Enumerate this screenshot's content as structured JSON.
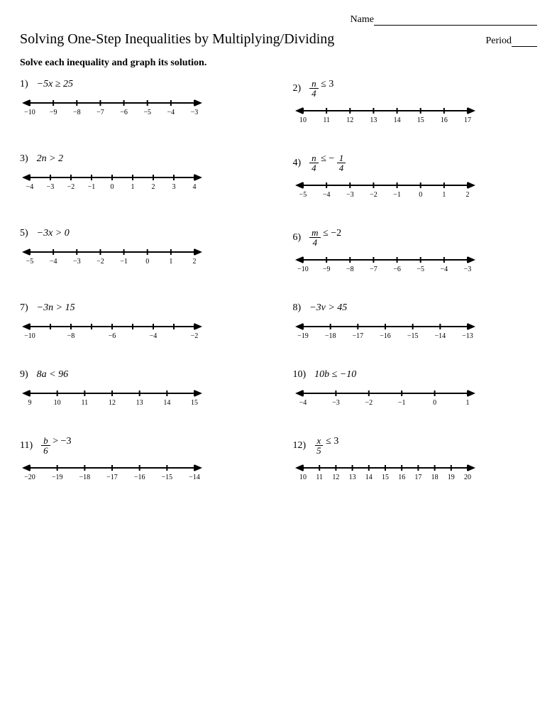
{
  "header": {
    "name_label": "Name",
    "period_label": "Period"
  },
  "title": "Solving One-Step Inequalities by Multiplying/Dividing",
  "instructions": "Solve each inequality and graph its solution.",
  "problems": [
    {
      "number": "1)",
      "expr": {
        "type": "plain",
        "text": "−5x ≥ 25"
      },
      "ticks": [
        "−10",
        "−9",
        "−8",
        "−7",
        "−6",
        "−5",
        "−4",
        "−3"
      ]
    },
    {
      "number": "2)",
      "expr": {
        "type": "frac",
        "top": "n",
        "bot": "4",
        "after": " ≤ 3"
      },
      "ticks": [
        "10",
        "11",
        "12",
        "13",
        "14",
        "15",
        "16",
        "17"
      ]
    },
    {
      "number": "3)",
      "expr": {
        "type": "plain",
        "text": "2n > 2"
      },
      "ticks": [
        "−4",
        "−3",
        "−2",
        "−1",
        "0",
        "1",
        "2",
        "3",
        "4"
      ]
    },
    {
      "number": "4)",
      "expr": {
        "type": "frac2",
        "top1": "n",
        "bot1": "4",
        "mid": " ≤ − ",
        "top2": "1",
        "bot2": "4"
      },
      "ticks": [
        "−5",
        "−4",
        "−3",
        "−2",
        "−1",
        "0",
        "1",
        "2"
      ]
    },
    {
      "number": "5)",
      "expr": {
        "type": "plain",
        "text": "−3x > 0"
      },
      "ticks": [
        "−5",
        "−4",
        "−3",
        "−2",
        "−1",
        "0",
        "1",
        "2"
      ]
    },
    {
      "number": "6)",
      "expr": {
        "type": "frac",
        "top": "m",
        "bot": "4",
        "after": " ≤ −2"
      },
      "ticks": [
        "−10",
        "−9",
        "−8",
        "−7",
        "−6",
        "−5",
        "−4",
        "−3"
      ]
    },
    {
      "number": "7)",
      "expr": {
        "type": "plain",
        "text": "−3n > 15"
      },
      "ticks": [
        "−10",
        "",
        "−8",
        "",
        "−6",
        "",
        "−4",
        "",
        "−2"
      ]
    },
    {
      "number": "8)",
      "expr": {
        "type": "plain",
        "text": "−3v > 45"
      },
      "ticks": [
        "−19",
        "−18",
        "−17",
        "−16",
        "−15",
        "−14",
        "−13"
      ]
    },
    {
      "number": "9)",
      "expr": {
        "type": "plain",
        "text": "8a < 96"
      },
      "ticks": [
        "9",
        "10",
        "11",
        "12",
        "13",
        "14",
        "15"
      ]
    },
    {
      "number": "10)",
      "expr": {
        "type": "plain",
        "text": "10b ≤ −10"
      },
      "ticks": [
        "−4",
        "−3",
        "−2",
        "−1",
        "0",
        "1"
      ]
    },
    {
      "number": "11)",
      "expr": {
        "type": "frac",
        "top": "b",
        "bot": "6",
        "after": " > −3"
      },
      "ticks": [
        "−20",
        "−19",
        "−18",
        "−17",
        "−16",
        "−15",
        "−14"
      ]
    },
    {
      "number": "12)",
      "expr": {
        "type": "frac",
        "top": "x",
        "bot": "5",
        "after": " ≤ 3"
      },
      "ticks": [
        "10",
        "11",
        "12",
        "13",
        "14",
        "15",
        "16",
        "17",
        "18",
        "19",
        "20"
      ]
    }
  ],
  "style": {
    "line_color": "#000000",
    "line_width": 2,
    "tick_height": 8,
    "arrow_size": 7,
    "numberline_width": 260,
    "numberline_height": 34,
    "label_fontsize": 10
  }
}
